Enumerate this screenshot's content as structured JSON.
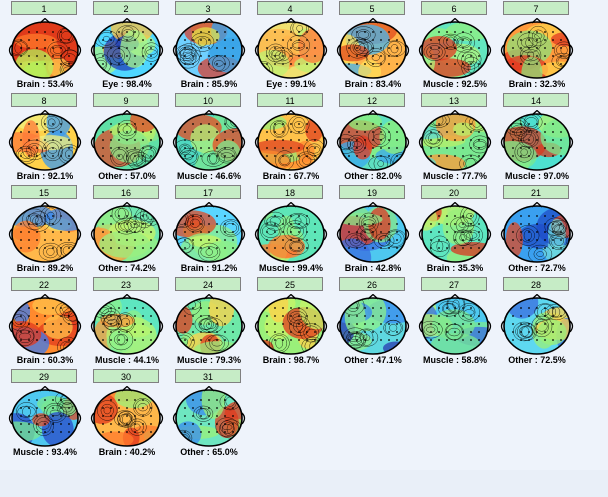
{
  "components": [
    {
      "label": "1",
      "caption": "Brain : 53.4%",
      "palette": [
        "#e03a1a",
        "#ff7a2a",
        "#ffc04a",
        "#b4f05a"
      ]
    },
    {
      "label": "2",
      "caption": "Eye : 98.4%",
      "palette": [
        "#4fd6ff",
        "#a8f78a",
        "#ffc23c",
        "#1f3fb8"
      ]
    },
    {
      "label": "3",
      "caption": "Brain : 85.9%",
      "palette": [
        "#6fd0ff",
        "#3aa4e8",
        "#e2e24a",
        "#d64030"
      ]
    },
    {
      "label": "4",
      "caption": "Eye : 99.1%",
      "palette": [
        "#f0e070",
        "#c0f070",
        "#ffb44a",
        "#ff7a3a"
      ]
    },
    {
      "label": "5",
      "caption": "Brain : 83.4%",
      "palette": [
        "#ffb44a",
        "#ffe05a",
        "#e04a1e",
        "#45b6f0"
      ]
    },
    {
      "label": "6",
      "caption": "Muscle : 92.5%",
      "palette": [
        "#63e6c0",
        "#90f080",
        "#b1f57a",
        "#e23a22"
      ]
    },
    {
      "label": "7",
      "caption": "Brain : 32.3%",
      "palette": [
        "#ff9a3c",
        "#e23a22",
        "#ffd24a",
        "#8ee07a"
      ]
    },
    {
      "label": "8",
      "caption": "Brain : 92.1%",
      "palette": [
        "#ffd24a",
        "#ff7a3a",
        "#3a9af0",
        "#f0f080"
      ]
    },
    {
      "label": "9",
      "caption": "Other : 57.0%",
      "palette": [
        "#5fe0a6",
        "#8ae88a",
        "#b8f06a",
        "#e04a2a"
      ]
    },
    {
      "label": "10",
      "caption": "Muscle : 46.6%",
      "palette": [
        "#4fd8c0",
        "#7ae890",
        "#b0f078",
        "#e84a22"
      ]
    },
    {
      "label": "11",
      "caption": "Brain : 67.7%",
      "palette": [
        "#ffc24a",
        "#ff8a2e",
        "#e04020",
        "#9af07a"
      ]
    },
    {
      "label": "12",
      "caption": "Other : 82.0%",
      "palette": [
        "#5ee0c0",
        "#8ef07a",
        "#3aa8ee",
        "#e23a22"
      ]
    },
    {
      "label": "13",
      "caption": "Muscle : 77.7%",
      "palette": [
        "#7ae890",
        "#b8f06a",
        "#5fd8d0",
        "#ff9a3a"
      ]
    },
    {
      "label": "14",
      "caption": "Muscle : 97.0%",
      "palette": [
        "#4ee0d0",
        "#7aea8e",
        "#b6f470",
        "#d63a20"
      ]
    },
    {
      "label": "15",
      "caption": "Brain : 89.2%",
      "palette": [
        "#ffb84a",
        "#ff8030",
        "#f0e060",
        "#3a8af0"
      ]
    },
    {
      "label": "16",
      "caption": "Other : 74.2%",
      "palette": [
        "#6ee6b0",
        "#9aef80",
        "#c8f468",
        "#ff9a3a"
      ]
    },
    {
      "label": "17",
      "caption": "Brain : 91.2%",
      "palette": [
        "#5ad6ff",
        "#8ef08a",
        "#c6f46a",
        "#e04a24"
      ]
    },
    {
      "label": "18",
      "caption": "Muscle : 99.4%",
      "palette": [
        "#5ee6b8",
        "#8ef08a",
        "#b8f46e",
        "#ff7a30"
      ]
    },
    {
      "label": "19",
      "caption": "Brain : 42.8%",
      "palette": [
        "#4ec8f0",
        "#88e888",
        "#3a6ce0",
        "#e03a22"
      ]
    },
    {
      "label": "20",
      "caption": "Brain : 35.3%",
      "palette": [
        "#5ee6c0",
        "#9af07c",
        "#c8f068",
        "#d83420"
      ]
    },
    {
      "label": "21",
      "caption": "Other : 72.7%",
      "palette": [
        "#3aa0f0",
        "#6ed8e0",
        "#1f4ec8",
        "#e04a22"
      ]
    },
    {
      "label": "22",
      "caption": "Brain : 60.3%",
      "palette": [
        "#ff8a2e",
        "#e23a1e",
        "#ffc04a",
        "#3a7af0"
      ]
    },
    {
      "label": "23",
      "caption": "Muscle : 44.1%",
      "palette": [
        "#5ee6c0",
        "#8ef08a",
        "#b8f46e",
        "#ff9a3a"
      ]
    },
    {
      "label": "24",
      "caption": "Muscle : 79.3%",
      "palette": [
        "#6ee8a8",
        "#9af080",
        "#ffd24a",
        "#e23a1e"
      ]
    },
    {
      "label": "25",
      "caption": "Brain : 98.7%",
      "palette": [
        "#9af07a",
        "#c8f468",
        "#ffd24a",
        "#e23a1e"
      ]
    },
    {
      "label": "26",
      "caption": "Other : 47.1%",
      "palette": [
        "#5ed8e0",
        "#8ef08a",
        "#3a8af0",
        "#2a3ab0"
      ]
    },
    {
      "label": "27",
      "caption": "Muscle : 58.8%",
      "palette": [
        "#4ec8f0",
        "#7ae890",
        "#3a6ce0",
        "#b8f46e"
      ]
    },
    {
      "label": "28",
      "caption": "Other : 72.5%",
      "palette": [
        "#5ed8f0",
        "#9af07a",
        "#ffd24a",
        "#3a6ce0"
      ]
    },
    {
      "label": "29",
      "caption": "Muscle : 93.4%",
      "palette": [
        "#4ec8f0",
        "#7ae890",
        "#2a4ac8",
        "#e04a22"
      ]
    },
    {
      "label": "30",
      "caption": "Brain : 40.2%",
      "palette": [
        "#ffb84a",
        "#ff7a2e",
        "#e23a1e",
        "#9af07a"
      ]
    },
    {
      "label": "31",
      "caption": "Other : 65.0%",
      "palette": [
        "#6ee6c0",
        "#9af07a",
        "#3a8af0",
        "#e23a1e"
      ]
    }
  ]
}
